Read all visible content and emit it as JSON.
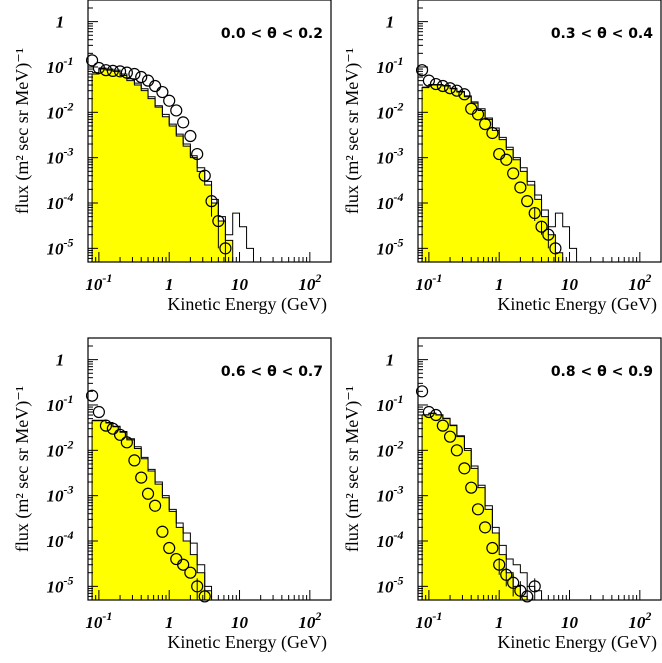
{
  "chart_data": [
    {
      "type": "histogram-scatter",
      "panel_label": "0.0 < θ < 0.2",
      "xlabel": "Kinetic Energy (GeV)",
      "ylabel": "flux (m² sec sr MeV)⁻¹",
      "xscale": "log",
      "yscale": "log",
      "xlim": [
        0.07,
        200
      ],
      "ylim": [
        5e-06,
        3
      ],
      "x_ticks": [
        {
          "label": "10",
          "exp": "-1"
        },
        {
          "label": "1",
          "exp": ""
        },
        {
          "label": "10",
          "exp": ""
        },
        {
          "label": "10",
          "exp": "2"
        }
      ],
      "y_ticks": [
        {
          "label": "1",
          "exp": ""
        },
        {
          "label": "10",
          "exp": "-1"
        },
        {
          "label": "10",
          "exp": "-2"
        },
        {
          "label": "10",
          "exp": "-3"
        },
        {
          "label": "10",
          "exp": "-4"
        },
        {
          "label": "10",
          "exp": "-5"
        }
      ],
      "series": [
        {
          "kind": "filled-histogram",
          "fill": "#ffff00",
          "edges": [
            0.08,
            0.1,
            0.126,
            0.158,
            0.2,
            0.25,
            0.32,
            0.4,
            0.5,
            0.63,
            0.8,
            1.0,
            1.26,
            1.58,
            2.0,
            2.5,
            3.2,
            4.0,
            5.0,
            6.3,
            8.0
          ],
          "values": [
            0.07,
            0.09,
            0.085,
            0.08,
            0.065,
            0.05,
            0.04,
            0.03,
            0.02,
            0.013,
            0.008,
            0.005,
            0.003,
            0.0018,
            0.001,
            0.0005,
            0.00025,
            0.0001,
            4e-05,
            1.5e-05
          ]
        },
        {
          "kind": "step-line",
          "color": "#000000",
          "edges": [
            0.08,
            0.1,
            0.126,
            0.158,
            0.2,
            0.25,
            0.32,
            0.4,
            0.5,
            0.63,
            0.8,
            1.0,
            1.26,
            1.58,
            2.0,
            2.5,
            3.2,
            4.0,
            5.0,
            6.3,
            8.0,
            10.0,
            12.6,
            15.8
          ],
          "values": [
            0.075,
            0.095,
            0.09,
            0.085,
            0.07,
            0.055,
            0.044,
            0.033,
            0.022,
            0.014,
            0.009,
            0.0055,
            0.0033,
            0.002,
            0.0011,
            0.0006,
            0.0003,
            0.00012,
            5e-05,
            2e-05,
            6e-05,
            3e-05,
            1e-05
          ]
        },
        {
          "kind": "points",
          "marker": "open-circle",
          "x": [
            0.08,
            0.1,
            0.126,
            0.158,
            0.2,
            0.25,
            0.32,
            0.4,
            0.5,
            0.63,
            0.8,
            1.0,
            1.26,
            1.58,
            2.0,
            2.5,
            3.2,
            4.0,
            5.0,
            6.3
          ],
          "y": [
            0.14,
            0.095,
            0.085,
            0.082,
            0.08,
            0.075,
            0.07,
            0.06,
            0.05,
            0.038,
            0.028,
            0.018,
            0.011,
            0.006,
            0.003,
            0.0012,
            0.0004,
            0.00011,
            4e-05,
            1e-05
          ],
          "yerr": [
            0,
            0,
            0,
            0,
            0,
            0,
            0,
            0,
            0,
            0,
            0,
            0,
            0,
            0,
            0,
            0,
            0,
            6e-05,
            3e-05,
            1e-05
          ]
        }
      ]
    },
    {
      "type": "histogram-scatter",
      "panel_label": "0.3 < θ < 0.4",
      "xlabel": "Kinetic Energy (GeV)",
      "ylabel": "flux (m² sec sr MeV)⁻¹",
      "xscale": "log",
      "yscale": "log",
      "xlim": [
        0.07,
        200
      ],
      "ylim": [
        5e-06,
        3
      ],
      "x_ticks": [
        {
          "label": "10",
          "exp": "-1"
        },
        {
          "label": "1",
          "exp": ""
        },
        {
          "label": "10",
          "exp": ""
        },
        {
          "label": "10",
          "exp": "2"
        }
      ],
      "y_ticks": [
        {
          "label": "1",
          "exp": ""
        },
        {
          "label": "10",
          "exp": "-1"
        },
        {
          "label": "10",
          "exp": "-2"
        },
        {
          "label": "10",
          "exp": "-3"
        },
        {
          "label": "10",
          "exp": "-4"
        },
        {
          "label": "10",
          "exp": "-5"
        }
      ],
      "series": [
        {
          "kind": "filled-histogram",
          "fill": "#ffff00",
          "edges": [
            0.08,
            0.1,
            0.126,
            0.158,
            0.2,
            0.25,
            0.32,
            0.4,
            0.5,
            0.63,
            0.8,
            1.0,
            1.26,
            1.58,
            2.0,
            2.5,
            3.2,
            4.0,
            5.0,
            6.3,
            8.0
          ],
          "values": [
            0.035,
            0.04,
            0.04,
            0.038,
            0.033,
            0.028,
            0.022,
            0.016,
            0.011,
            0.007,
            0.004,
            0.0025,
            0.0015,
            0.0009,
            0.0005,
            0.00025,
            0.00012,
            5e-05,
            2e-05,
            8e-06
          ]
        },
        {
          "kind": "step-line",
          "color": "#000000",
          "edges": [
            0.08,
            0.1,
            0.126,
            0.158,
            0.2,
            0.25,
            0.32,
            0.4,
            0.5,
            0.63,
            0.8,
            1.0,
            1.26,
            1.58,
            2.0,
            2.5,
            3.2,
            4.0,
            5.0,
            6.3,
            8.0,
            10.0,
            12.6
          ],
          "values": [
            0.036,
            0.041,
            0.041,
            0.039,
            0.034,
            0.029,
            0.023,
            0.017,
            0.012,
            0.0075,
            0.0045,
            0.0028,
            0.0017,
            0.001,
            0.0006,
            0.0003,
            0.00015,
            7e-05,
            3e-05,
            6e-05,
            3e-05,
            1e-05
          ]
        },
        {
          "kind": "points",
          "marker": "open-circle",
          "x": [
            0.08,
            0.1,
            0.126,
            0.158,
            0.2,
            0.25,
            0.32,
            0.4,
            0.5,
            0.63,
            0.8,
            1.0,
            1.26,
            1.58,
            2.0,
            2.5,
            3.2,
            4.0,
            5.0,
            6.3
          ],
          "y": [
            0.085,
            0.05,
            0.042,
            0.038,
            0.034,
            0.03,
            0.025,
            0.012,
            0.009,
            0.0055,
            0.0035,
            0.0012,
            0.0009,
            0.00045,
            0.00022,
            0.00011,
            6e-05,
            3e-05,
            2e-05,
            1e-05
          ],
          "yerr": [
            0,
            0,
            0,
            0,
            0,
            0,
            0,
            0,
            0,
            0,
            0,
            0,
            0,
            0,
            0,
            0,
            2e-05,
            1e-05,
            1e-05,
            5e-06
          ]
        }
      ]
    },
    {
      "type": "histogram-scatter",
      "panel_label": "0.6 < θ < 0.7",
      "xlabel": "Kinetic Energy (GeV)",
      "ylabel": "flux (m² sec sr MeV)⁻¹",
      "xscale": "log",
      "yscale": "log",
      "xlim": [
        0.07,
        200
      ],
      "ylim": [
        5e-06,
        3
      ],
      "x_ticks": [
        {
          "label": "10",
          "exp": "-1"
        },
        {
          "label": "1",
          "exp": ""
        },
        {
          "label": "10",
          "exp": ""
        },
        {
          "label": "10",
          "exp": "2"
        }
      ],
      "y_ticks": [
        {
          "label": "1",
          "exp": ""
        },
        {
          "label": "10",
          "exp": "-1"
        },
        {
          "label": "10",
          "exp": "-2"
        },
        {
          "label": "10",
          "exp": "-3"
        },
        {
          "label": "10",
          "exp": "-4"
        },
        {
          "label": "10",
          "exp": "-5"
        }
      ],
      "series": [
        {
          "kind": "filled-histogram",
          "fill": "#ffff00",
          "edges": [
            0.08,
            0.1,
            0.126,
            0.158,
            0.2,
            0.25,
            0.32,
            0.4,
            0.5,
            0.63,
            0.8,
            1.0,
            1.26,
            1.58,
            2.0,
            2.5,
            3.2,
            4.0
          ],
          "values": [
            0.045,
            0.045,
            0.04,
            0.033,
            0.025,
            0.017,
            0.011,
            0.0065,
            0.0035,
            0.0018,
            0.0009,
            0.00045,
            0.0002,
            0.0001,
            5e-05,
            2e-05,
            8e-06
          ]
        },
        {
          "kind": "step-line",
          "color": "#000000",
          "edges": [
            0.08,
            0.1,
            0.126,
            0.158,
            0.2,
            0.25,
            0.32,
            0.4,
            0.5,
            0.63,
            0.8,
            1.0,
            1.26,
            1.58,
            2.0,
            2.5,
            3.2,
            4.0,
            5.0
          ],
          "values": [
            0.046,
            0.046,
            0.041,
            0.034,
            0.026,
            0.018,
            0.012,
            0.007,
            0.0038,
            0.002,
            0.001,
            0.0005,
            0.00025,
            0.00015,
            9e-05,
            3e-05,
            1e-05,
            5e-06
          ]
        },
        {
          "kind": "points",
          "marker": "open-circle",
          "x": [
            0.08,
            0.1,
            0.126,
            0.158,
            0.2,
            0.25,
            0.32,
            0.4,
            0.5,
            0.63,
            0.8,
            1.0,
            1.26,
            1.58,
            2.0,
            2.5,
            3.2
          ],
          "y": [
            0.16,
            0.07,
            0.035,
            0.03,
            0.022,
            0.015,
            0.006,
            0.0025,
            0.0011,
            0.0006,
            0.00016,
            7e-05,
            4e-05,
            3e-05,
            2e-05,
            1e-05,
            6e-06
          ],
          "yerr": [
            0,
            0,
            0,
            0,
            0,
            0,
            0,
            0,
            0,
            0,
            0,
            0,
            0,
            0,
            0,
            5e-06,
            3e-06
          ]
        }
      ]
    },
    {
      "type": "histogram-scatter",
      "panel_label": "0.8 < θ < 0.9",
      "xlabel": "Kinetic Energy (GeV)",
      "ylabel": "flux (m² sec sr MeV)⁻¹",
      "xscale": "log",
      "yscale": "log",
      "xlim": [
        0.07,
        200
      ],
      "ylim": [
        5e-06,
        3
      ],
      "x_ticks": [
        {
          "label": "10",
          "exp": "-1"
        },
        {
          "label": "1",
          "exp": ""
        },
        {
          "label": "10",
          "exp": ""
        },
        {
          "label": "10",
          "exp": "2"
        }
      ],
      "y_ticks": [
        {
          "label": "1",
          "exp": ""
        },
        {
          "label": "10",
          "exp": "-1"
        },
        {
          "label": "10",
          "exp": "-2"
        },
        {
          "label": "10",
          "exp": "-3"
        },
        {
          "label": "10",
          "exp": "-4"
        },
        {
          "label": "10",
          "exp": "-5"
        }
      ],
      "series": [
        {
          "kind": "filled-histogram",
          "fill": "#ffff00",
          "edges": [
            0.08,
            0.1,
            0.126,
            0.158,
            0.2,
            0.25,
            0.32,
            0.4,
            0.5,
            0.63,
            0.8,
            1.0,
            1.26,
            1.58,
            2.0,
            2.5
          ],
          "values": [
            0.06,
            0.065,
            0.06,
            0.05,
            0.035,
            0.02,
            0.01,
            0.004,
            0.0015,
            0.0005,
            0.00015,
            5e-05,
            2e-05,
            1e-05,
            6e-06
          ]
        },
        {
          "kind": "step-line",
          "color": "#000000",
          "edges": [
            0.08,
            0.1,
            0.126,
            0.158,
            0.2,
            0.25,
            0.32,
            0.4,
            0.5,
            0.63,
            0.8,
            1.0,
            1.26,
            1.58,
            2.0,
            2.5,
            3.2,
            4.0,
            5.0
          ],
          "values": [
            0.061,
            0.066,
            0.061,
            0.051,
            0.036,
            0.021,
            0.011,
            0.0045,
            0.0017,
            0.0006,
            0.0002,
            8e-05,
            4e-05,
            3e-05,
            2e-05,
            1e-05,
            8e-06,
            5e-06
          ]
        },
        {
          "kind": "points",
          "marker": "open-circle",
          "x": [
            0.08,
            0.1,
            0.126,
            0.158,
            0.2,
            0.25,
            0.32,
            0.4,
            0.5,
            0.63,
            0.8,
            1.0,
            1.26,
            1.58,
            2.0,
            2.5,
            3.2
          ],
          "y": [
            0.2,
            0.07,
            0.06,
            0.035,
            0.02,
            0.01,
            0.004,
            0.0015,
            0.0005,
            0.0002,
            7e-05,
            3e-05,
            1.8e-05,
            1.2e-05,
            8e-06,
            6e-06,
            1e-05
          ],
          "yerr": [
            0,
            0,
            0,
            0,
            0,
            0,
            0,
            0,
            0,
            0,
            0,
            1.2e-05,
            8e-06,
            6e-06,
            5e-06,
            4e-06,
            5e-06
          ]
        }
      ]
    }
  ]
}
